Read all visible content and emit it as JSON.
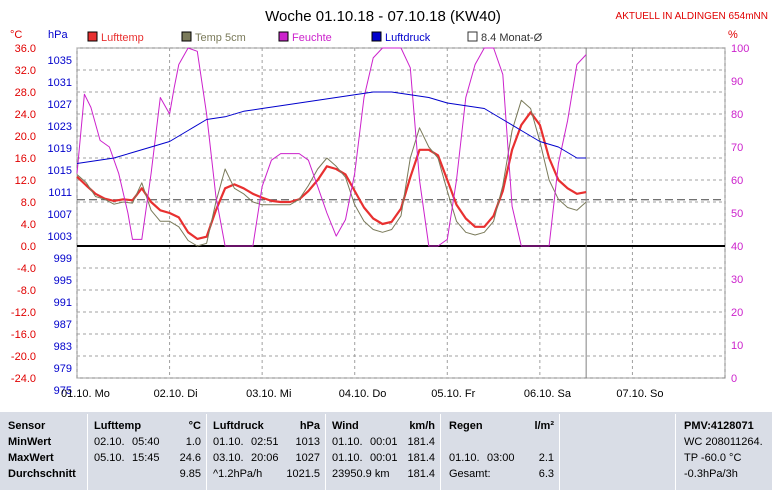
{
  "chart_data": {
    "type": "line",
    "title": "Woche 01.10.18 - 07.10.18 (KW40)",
    "subtitle": "AKTUELL IN ALDINGEN 654mNN",
    "left_axis_unit_temp": "°C",
    "left_axis_unit_pressure": "hPa",
    "right_axis_unit": "%",
    "temp_ticks": [
      "36.0",
      "32.0",
      "28.0",
      "24.0",
      "20.0",
      "16.0",
      "12.0",
      "8.0",
      "4.0",
      "0.0",
      "-4.0",
      "-8.0",
      "-12.0",
      "-16.0",
      "-20.0",
      "-24.0"
    ],
    "pressure_ticks": [
      "1035",
      "1031",
      "1027",
      "1023",
      "1019",
      "1015",
      "1011",
      "1007",
      "1003",
      "999",
      "995",
      "991",
      "987",
      "983",
      "979",
      "975"
    ],
    "humidity_ticks": [
      "100",
      "90",
      "80",
      "70",
      "60",
      "50",
      "40",
      "30",
      "20",
      "10",
      "0"
    ],
    "x_ticks": [
      "01.10. Mo",
      "02.10. Di",
      "03.10. Mi",
      "04.10. Do",
      "05.10. Fr",
      "06.10. Sa",
      "07.10. So"
    ],
    "ylim_temp": [
      -24,
      36
    ],
    "ylim_pressure": [
      975,
      1035
    ],
    "ylim_humidity": [
      0,
      100
    ],
    "xlim_days": [
      0,
      7
    ],
    "legend": [
      {
        "name": "Lufttemp",
        "color": "#e83030"
      },
      {
        "name": "Temp 5cm",
        "color": "#7a7a5a"
      },
      {
        "name": "Feuchte",
        "color": "#cc22cc"
      },
      {
        "name": "Luftdruck",
        "color": "#0000cc"
      },
      {
        "name": "8.4 Monat-Ø",
        "color": "#666666"
      }
    ],
    "monthly_avg_temp": 8.4,
    "current_marker_day": 5.5,
    "series": [
      {
        "name": "Lufttemp",
        "color": "#e83030",
        "x": [
          0,
          0.1,
          0.2,
          0.3,
          0.4,
          0.5,
          0.6,
          0.7,
          0.8,
          0.9,
          1.0,
          1.1,
          1.2,
          1.3,
          1.4,
          1.5,
          1.6,
          1.7,
          1.8,
          1.9,
          2.0,
          2.1,
          2.2,
          2.3,
          2.4,
          2.5,
          2.6,
          2.7,
          2.8,
          2.9,
          3.0,
          3.1,
          3.2,
          3.3,
          3.4,
          3.5,
          3.6,
          3.7,
          3.8,
          3.9,
          4.0,
          4.1,
          4.2,
          4.3,
          4.4,
          4.5,
          4.6,
          4.7,
          4.8,
          4.9,
          5.0,
          5.1,
          5.2,
          5.3,
          5.4,
          5.5
        ],
        "y": [
          12.6,
          11,
          9.5,
          8.6,
          8.2,
          8.5,
          8.3,
          10.5,
          8,
          6.5,
          6,
          5.2,
          2.5,
          1.3,
          1.7,
          6.5,
          10.5,
          11.2,
          10.5,
          9.5,
          8.8,
          8.2,
          8,
          8,
          8.5,
          10,
          12,
          14.5,
          14,
          13,
          10,
          7,
          5,
          4,
          4.4,
          6.8,
          12.5,
          17.5,
          17.5,
          16.5,
          12,
          7.5,
          5,
          3.5,
          3.5,
          5.5,
          10,
          17.5,
          22,
          24.3,
          22,
          16,
          12,
          10.5,
          9.5,
          9.8
        ]
      },
      {
        "name": "Temp 5cm",
        "color": "#7a7a5a",
        "x": [
          0,
          0.1,
          0.2,
          0.3,
          0.4,
          0.5,
          0.6,
          0.7,
          0.8,
          0.9,
          1.0,
          1.1,
          1.2,
          1.3,
          1.4,
          1.5,
          1.6,
          1.7,
          1.8,
          1.9,
          2.0,
          2.1,
          2.2,
          2.3,
          2.4,
          2.5,
          2.6,
          2.7,
          2.8,
          2.9,
          3.0,
          3.1,
          3.2,
          3.3,
          3.4,
          3.5,
          3.6,
          3.7,
          3.8,
          3.9,
          4.0,
          4.1,
          4.2,
          4.3,
          4.4,
          4.5,
          4.6,
          4.7,
          4.8,
          4.9,
          5.0,
          5.1,
          5.2,
          5.3,
          5.4,
          5.5
        ],
        "y": [
          13,
          11.5,
          9,
          8.5,
          7.6,
          8,
          7.8,
          11.5,
          6.5,
          4.5,
          4.5,
          3.5,
          1,
          0,
          0.5,
          8,
          14,
          10.5,
          9.5,
          8,
          7.5,
          7.5,
          7.5,
          7.5,
          8.5,
          11,
          14,
          16,
          14.5,
          12.5,
          7.5,
          4.5,
          3,
          2.5,
          3,
          5.5,
          16,
          21.5,
          18,
          16,
          10,
          4.5,
          2.5,
          2,
          2.5,
          4.5,
          11,
          21,
          26.5,
          25,
          19,
          12,
          8.5,
          7,
          6.5,
          8
        ]
      },
      {
        "name": "Feuchte",
        "color": "#cc22cc",
        "x": [
          0,
          0.08,
          0.15,
          0.25,
          0.35,
          0.45,
          0.55,
          0.6,
          0.7,
          0.8,
          0.9,
          1.0,
          1.05,
          1.1,
          1.2,
          1.3,
          1.4,
          1.5,
          1.6,
          1.7,
          1.8,
          1.9,
          2.0,
          2.1,
          2.2,
          2.3,
          2.4,
          2.5,
          2.6,
          2.7,
          2.8,
          2.9,
          3.0,
          3.1,
          3.2,
          3.3,
          3.4,
          3.5,
          3.6,
          3.7,
          3.8,
          3.9,
          4.0,
          4.1,
          4.2,
          4.3,
          4.4,
          4.5,
          4.6,
          4.7,
          4.8,
          4.9,
          5.0,
          5.1,
          5.2,
          5.3,
          5.4,
          5.5
        ],
        "y": [
          62,
          86,
          82,
          72,
          70,
          62,
          50,
          42,
          42,
          62,
          85,
          80,
          88,
          95,
          100,
          99,
          80,
          55,
          40,
          40,
          40,
          40,
          58,
          66,
          68,
          68,
          68,
          66,
          58,
          50,
          43,
          48,
          62,
          85,
          97,
          100,
          100,
          100,
          94,
          60,
          40,
          40,
          42,
          60,
          85,
          95,
          100,
          100,
          92,
          52,
          40,
          40,
          40,
          40,
          65,
          78,
          95,
          98
        ]
      },
      {
        "name": "Luftdruck",
        "color": "#0000cc",
        "x": [
          0,
          0.2,
          0.4,
          0.6,
          0.8,
          1.0,
          1.2,
          1.4,
          1.6,
          1.8,
          2.0,
          2.2,
          2.4,
          2.6,
          2.8,
          3.0,
          3.2,
          3.4,
          3.6,
          3.8,
          4.0,
          4.2,
          4.4,
          4.6,
          4.8,
          5.0,
          5.2,
          5.4,
          5.5
        ],
        "y": [
          1014,
          1014.5,
          1015,
          1016,
          1017,
          1018,
          1020,
          1022,
          1022.5,
          1023.5,
          1024,
          1024.5,
          1025,
          1025.5,
          1026,
          1026.5,
          1027,
          1027,
          1026.5,
          1026,
          1025,
          1024.5,
          1024,
          1022,
          1020,
          1018,
          1017,
          1015,
          1015
        ]
      }
    ]
  },
  "panel": {
    "sensor": {
      "label": "Sensor",
      "min": "MinWert",
      "max": "MaxWert",
      "avg": "Durchschnitt"
    },
    "lufttemp": {
      "title": "Lufttemp",
      "unit": "°C",
      "min_date": "02.10.",
      "min_time": "05:40",
      "min_val": "1.0",
      "max_date": "05.10.",
      "max_time": "15:45",
      "max_val": "24.6",
      "avg_val": "9.85"
    },
    "luftdruck": {
      "title": "Luftdruck",
      "unit": "hPa",
      "min_date": "01.10.",
      "min_time": "02:51",
      "min_val": "1013",
      "max_date": "03.10.",
      "max_time": "20:06",
      "max_val": "1027",
      "avg_label": "^1.2hPa/h",
      "avg_val": "1021.5"
    },
    "wind": {
      "title": "Wind",
      "unit": "km/h",
      "min_date": "01.10.",
      "min_time": "00:01",
      "min_val": "181.4",
      "max_date": "01.10.",
      "max_time": "00:01",
      "max_val": "181.4",
      "avg_label": "23950.9 km",
      "avg_val": "181.4"
    },
    "regen": {
      "title": "Regen",
      "unit": "l/m²",
      "max_date": "01.10.",
      "max_time": "03:00",
      "max_val": "2.1",
      "avg_label": "Gesamt:",
      "avg_val": "6.3"
    },
    "pmv": {
      "title": "PMV:4128071",
      "line1": "WC 208011264.",
      "line2": "TP -60.0 °C",
      "line3": "-0.3hPa/3h"
    }
  }
}
